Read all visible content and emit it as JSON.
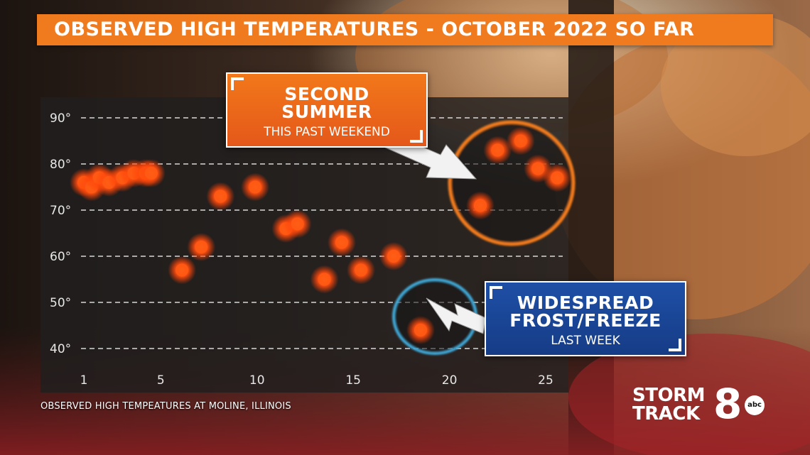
{
  "title": "OBSERVED HIGH TEMPERATURES - OCTOBER 2022 SO FAR",
  "source_note": "OBSERVED HIGH TEMPEATURES AT MOLINE, ILLINOIS",
  "callouts": {
    "summer": {
      "line1": "SECOND",
      "line2": "SUMMER",
      "sub": "THIS PAST WEEKEND"
    },
    "frost": {
      "line1": "WIDESPREAD",
      "line2": "FROST/FREEZE",
      "sub": "LAST WEEK"
    }
  },
  "logo": {
    "word1": "STORM",
    "word2": "TRACK",
    "number": "8",
    "network": "abc"
  },
  "colors": {
    "title_bar": "#f07a1e",
    "point": "#ff5a14",
    "summer_ring": "#f07a1e",
    "frost_ring": "#3fa9d8",
    "summer_box": "#e8621a",
    "frost_box": "#1b4796"
  },
  "chart_data": {
    "type": "scatter",
    "title": "OBSERVED HIGH TEMPERATURES - OCTOBER 2022 SO FAR",
    "xlabel": "",
    "ylabel": "",
    "xlim": [
      1,
      26
    ],
    "ylim": [
      36,
      94
    ],
    "x_ticks": [
      1,
      5,
      10,
      15,
      20,
      25
    ],
    "x_tick_labels": [
      "1",
      "5",
      "10",
      "15",
      "20",
      "25"
    ],
    "y_ticks": [
      40,
      50,
      60,
      70,
      80,
      90
    ],
    "y_tick_labels": [
      "40°",
      "50°",
      "60°",
      "70°",
      "80°",
      "90°"
    ],
    "grid": "horizontal dashed",
    "points": [
      {
        "x": 1,
        "y": 76
      },
      {
        "x": 1.4,
        "y": 75
      },
      {
        "x": 1.8,
        "y": 77
      },
      {
        "x": 2.3,
        "y": 76
      },
      {
        "x": 3,
        "y": 77
      },
      {
        "x": 3.6,
        "y": 78
      },
      {
        "x": 4.2,
        "y": 78
      },
      {
        "x": 4.5,
        "y": 78
      },
      {
        "x": 6.1,
        "y": 57
      },
      {
        "x": 7.1,
        "y": 62
      },
      {
        "x": 8.1,
        "y": 73
      },
      {
        "x": 9.9,
        "y": 75
      },
      {
        "x": 11.5,
        "y": 66
      },
      {
        "x": 12.1,
        "y": 67
      },
      {
        "x": 13.5,
        "y": 55
      },
      {
        "x": 14.4,
        "y": 63
      },
      {
        "x": 15.4,
        "y": 57
      },
      {
        "x": 17.1,
        "y": 60
      },
      {
        "x": 18.5,
        "y": 44
      },
      {
        "x": 21.6,
        "y": 71
      },
      {
        "x": 22.5,
        "y": 83
      },
      {
        "x": 23.7,
        "y": 85
      },
      {
        "x": 24.6,
        "y": 79
      },
      {
        "x": 25.6,
        "y": 77
      }
    ]
  }
}
